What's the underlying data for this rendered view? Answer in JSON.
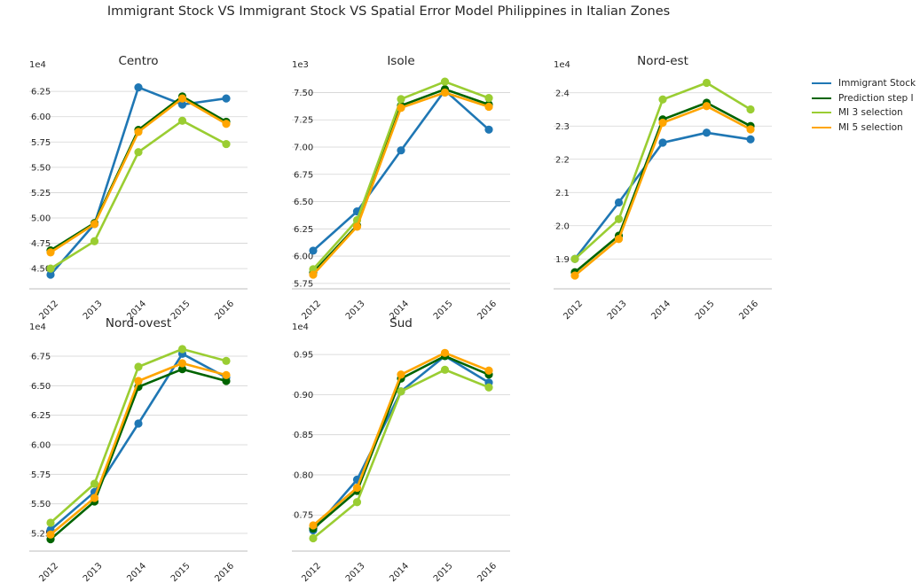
{
  "colors": {
    "immigrant_stock": "#1f77b4",
    "prediction_step_i": "#006400",
    "mi3": "#9acd32",
    "mi5": "#ffa500",
    "grid": "#d3d3d3",
    "axis": "#bdbdbd",
    "text": "#262626"
  },
  "chart_data": {
    "title": "Immigrant Stock VS Immigrant Stock VS Spatial Error Model Philippines in Italian Zones",
    "legend": {
      "placement": "right",
      "entries": [
        "Immigrant Stock",
        "Prediction step I",
        "MI 3 selection",
        "MI 5 selection"
      ]
    },
    "panels": [
      {
        "type": "line",
        "title": "Centro",
        "scale_label": "1e4",
        "categories": [
          "2012",
          "2013",
          "2014",
          "2015",
          "2016"
        ],
        "ylim": [
          4.3,
          6.4
        ],
        "yticks": [
          "4.50",
          "4.75",
          "5.00",
          "5.25",
          "5.50",
          "5.75",
          "6.00",
          "6.25"
        ],
        "grid": true,
        "series": [
          {
            "name": "Immigrant Stock",
            "values": [
              4.44,
              4.94,
              6.29,
              6.12,
              6.18
            ]
          },
          {
            "name": "Prediction step I",
            "values": [
              4.68,
              4.95,
              5.87,
              6.2,
              5.95
            ]
          },
          {
            "name": "MI 3 selection",
            "values": [
              4.5,
              4.77,
              5.65,
              5.96,
              5.73
            ]
          },
          {
            "name": "MI 5 selection",
            "values": [
              4.66,
              4.94,
              5.85,
              6.18,
              5.93
            ]
          }
        ]
      },
      {
        "type": "line",
        "title": "Isole",
        "scale_label": "1e3",
        "categories": [
          "2012",
          "2013",
          "2014",
          "2015",
          "2016"
        ],
        "ylim": [
          5.7,
          7.65
        ],
        "yticks": [
          "5.75",
          "6.00",
          "6.25",
          "6.50",
          "6.75",
          "7.00",
          "7.25",
          "7.50"
        ],
        "grid": true,
        "series": [
          {
            "name": "Immigrant Stock",
            "values": [
              6.05,
              6.41,
              6.97,
              7.52,
              7.16
            ]
          },
          {
            "name": "Prediction step I",
            "values": [
              5.85,
              6.28,
              7.38,
              7.53,
              7.39
            ]
          },
          {
            "name": "MI 3 selection",
            "values": [
              5.88,
              6.33,
              7.44,
              7.6,
              7.45
            ]
          },
          {
            "name": "MI 5 selection",
            "values": [
              5.83,
              6.27,
              7.36,
              7.5,
              7.37
            ]
          }
        ]
      },
      {
        "type": "line",
        "title": "Nord-est",
        "scale_label": "1e4",
        "categories": [
          "2012",
          "2013",
          "2014",
          "2015",
          "2016"
        ],
        "ylim": [
          1.81,
          2.45
        ],
        "yticks": [
          "1.9",
          "2.0",
          "2.1",
          "2.2",
          "2.3",
          "2.4"
        ],
        "grid": true,
        "series": [
          {
            "name": "Immigrant Stock",
            "values": [
              1.9,
              2.07,
              2.25,
              2.28,
              2.26
            ]
          },
          {
            "name": "Prediction step I",
            "values": [
              1.86,
              1.97,
              2.32,
              2.37,
              2.3
            ]
          },
          {
            "name": "MI 3 selection",
            "values": [
              1.9,
              2.02,
              2.38,
              2.43,
              2.35
            ]
          },
          {
            "name": "MI 5 selection",
            "values": [
              1.85,
              1.96,
              2.31,
              2.36,
              2.29
            ]
          }
        ]
      },
      {
        "type": "line",
        "title": "Nord-ovest",
        "scale_label": "1e4",
        "categories": [
          "2012",
          "2013",
          "2014",
          "2015",
          "2016"
        ],
        "ylim": [
          5.1,
          6.9
        ],
        "yticks": [
          "5.25",
          "5.50",
          "5.75",
          "6.00",
          "6.25",
          "6.50",
          "6.75"
        ],
        "grid": true,
        "series": [
          {
            "name": "Immigrant Stock",
            "values": [
              5.28,
              5.6,
              6.18,
              6.77,
              6.57
            ]
          },
          {
            "name": "Prediction step I",
            "values": [
              5.2,
              5.52,
              6.49,
              6.64,
              6.54
            ]
          },
          {
            "name": "MI 3 selection",
            "values": [
              5.34,
              5.67,
              6.66,
              6.81,
              6.71
            ]
          },
          {
            "name": "MI 5 selection",
            "values": [
              5.24,
              5.55,
              6.54,
              6.69,
              6.59
            ]
          }
        ]
      },
      {
        "type": "line",
        "title": "Sud",
        "scale_label": "1e4",
        "categories": [
          "2012",
          "2013",
          "2014",
          "2015",
          "2016"
        ],
        "ylim": [
          0.705,
          0.97
        ],
        "yticks": [
          "0.75",
          "0.80",
          "0.85",
          "0.90",
          "0.95"
        ],
        "grid": true,
        "series": [
          {
            "name": "Immigrant Stock",
            "values": [
              0.731,
              0.794,
              0.904,
              0.948,
              0.915
            ]
          },
          {
            "name": "Prediction step I",
            "values": [
              0.733,
              0.78,
              0.92,
              0.948,
              0.925
            ]
          },
          {
            "name": "MI 3 selection",
            "values": [
              0.721,
              0.766,
              0.904,
              0.931,
              0.909
            ]
          },
          {
            "name": "MI 5 selection",
            "values": [
              0.737,
              0.784,
              0.925,
              0.952,
              0.93
            ]
          }
        ]
      }
    ]
  }
}
